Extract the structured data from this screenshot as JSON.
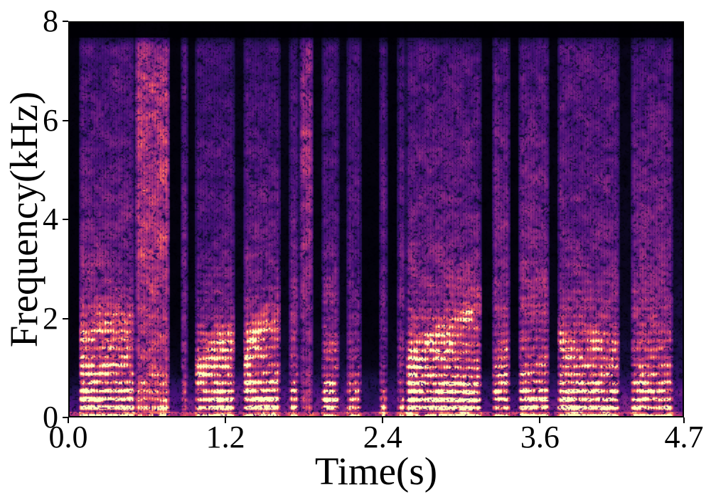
{
  "figure": {
    "background": "#ffffff",
    "spine_color": "#000000",
    "tick_color": "#000000",
    "text_color": "#000000"
  },
  "chart_data": {
    "type": "heatmap",
    "subtype": "speech-spectrogram",
    "title": "",
    "xlabel": "Time(s)",
    "ylabel": "Frequency(kHz)",
    "xlim": [
      0,
      4.7
    ],
    "ylim": [
      0,
      8
    ],
    "grid": false,
    "legend": false,
    "x_ticks": [
      {
        "value": 0.0,
        "label": "0.0"
      },
      {
        "value": 1.2,
        "label": "1.2"
      },
      {
        "value": 2.4,
        "label": "2.4"
      },
      {
        "value": 3.6,
        "label": "3.6"
      },
      {
        "value": 4.7,
        "label": "4.7"
      }
    ],
    "y_ticks": [
      {
        "value": 0,
        "label": "0"
      },
      {
        "value": 2,
        "label": "2"
      },
      {
        "value": 4,
        "label": "4"
      },
      {
        "value": 6,
        "label": "6"
      },
      {
        "value": 8,
        "label": "8"
      }
    ],
    "colormap": {
      "name": "magma",
      "stops": [
        [
          0.0,
          "#000004"
        ],
        [
          0.14,
          "#1d1147"
        ],
        [
          0.28,
          "#451077"
        ],
        [
          0.42,
          "#721f81"
        ],
        [
          0.56,
          "#9f2f7f"
        ],
        [
          0.7,
          "#cd4071"
        ],
        [
          0.8,
          "#ea5661"
        ],
        [
          0.88,
          "#fa815f"
        ],
        [
          0.94,
          "#fdab78"
        ],
        [
          1.0,
          "#fcfdbf"
        ]
      ]
    },
    "band_freqs_khz": [
      0.2,
      1.0,
      2.0,
      3.5,
      5.5,
      7.5
    ],
    "high_cutoff_khz": 7.7,
    "segments": [
      {
        "t0": 0.0,
        "t1": 0.07,
        "type": "silence",
        "levels": [
          0.25,
          0.04,
          0.02,
          0.02,
          0.02,
          0.02
        ],
        "harm": 0
      },
      {
        "t0": 0.07,
        "t1": 0.5,
        "type": "voiced",
        "levels": [
          0.95,
          0.72,
          0.55,
          0.42,
          0.33,
          0.3
        ],
        "harm": 0.6,
        "f0": 0.165,
        "track": [
          1.7,
          1.9,
          0.16
        ]
      },
      {
        "t0": 0.5,
        "t1": 0.77,
        "type": "fricative",
        "levels": [
          0.8,
          0.6,
          0.57,
          0.62,
          0.63,
          0.55
        ],
        "harm": 0.25,
        "f0": 0.165
      },
      {
        "t0": 0.77,
        "t1": 0.85,
        "type": "silence",
        "levels": [
          0.3,
          0.05,
          0.02,
          0.02,
          0.02,
          0.02
        ],
        "harm": 0
      },
      {
        "t0": 0.85,
        "t1": 0.91,
        "type": "burst",
        "levels": [
          0.65,
          0.5,
          0.45,
          0.4,
          0.35,
          0.3
        ],
        "harm": 0.3,
        "f0": 0.165
      },
      {
        "t0": 0.91,
        "t1": 0.96,
        "type": "silence",
        "levels": [
          0.35,
          0.08,
          0.04,
          0.03,
          0.03,
          0.03
        ],
        "harm": 0
      },
      {
        "t0": 0.96,
        "t1": 1.27,
        "type": "voiced",
        "levels": [
          0.9,
          0.62,
          0.45,
          0.33,
          0.28,
          0.24
        ],
        "harm": 0.6,
        "f0": 0.17,
        "track": [
          1.0,
          1.6,
          0.2
        ]
      },
      {
        "t0": 1.27,
        "t1": 1.33,
        "type": "silence",
        "levels": [
          0.45,
          0.1,
          0.05,
          0.04,
          0.04,
          0.04
        ],
        "harm": 0
      },
      {
        "t0": 1.33,
        "t1": 1.62,
        "type": "voiced",
        "levels": [
          0.92,
          0.66,
          0.5,
          0.38,
          0.3,
          0.26
        ],
        "harm": 0.6,
        "f0": 0.17,
        "track": [
          1.2,
          2.2,
          0.22
        ]
      },
      {
        "t0": 1.62,
        "t1": 1.68,
        "type": "silence",
        "levels": [
          0.4,
          0.1,
          0.05,
          0.04,
          0.04,
          0.04
        ],
        "harm": 0
      },
      {
        "t0": 1.68,
        "t1": 1.76,
        "type": "voiced",
        "levels": [
          0.85,
          0.6,
          0.48,
          0.38,
          0.32,
          0.28
        ],
        "harm": 0.5,
        "f0": 0.17
      },
      {
        "t0": 1.76,
        "t1": 1.87,
        "type": "fricative",
        "levels": [
          0.6,
          0.48,
          0.46,
          0.5,
          0.52,
          0.46
        ],
        "harm": 0.2,
        "f0": 0.17
      },
      {
        "t0": 1.87,
        "t1": 1.93,
        "type": "silence",
        "levels": [
          0.35,
          0.08,
          0.04,
          0.03,
          0.03,
          0.03
        ],
        "harm": 0
      },
      {
        "t0": 1.93,
        "t1": 2.07,
        "type": "voiced",
        "levels": [
          0.88,
          0.6,
          0.45,
          0.34,
          0.29,
          0.25
        ],
        "harm": 0.6,
        "f0": 0.17
      },
      {
        "t0": 2.07,
        "t1": 2.12,
        "type": "silence",
        "levels": [
          0.4,
          0.1,
          0.05,
          0.04,
          0.04,
          0.04
        ],
        "harm": 0
      },
      {
        "t0": 2.12,
        "t1": 2.24,
        "type": "voiced",
        "levels": [
          0.75,
          0.5,
          0.4,
          0.32,
          0.28,
          0.25
        ],
        "harm": 0.45,
        "f0": 0.17
      },
      {
        "t0": 2.24,
        "t1": 2.37,
        "type": "silence",
        "levels": [
          0.25,
          0.04,
          0.02,
          0.02,
          0.02,
          0.02
        ],
        "harm": 0
      },
      {
        "t0": 2.37,
        "t1": 2.44,
        "type": "burst",
        "levels": [
          0.7,
          0.45,
          0.4,
          0.35,
          0.32,
          0.28
        ],
        "harm": 0.35,
        "f0": 0.17
      },
      {
        "t0": 2.44,
        "t1": 2.51,
        "type": "silence",
        "levels": [
          0.3,
          0.06,
          0.03,
          0.02,
          0.02,
          0.02
        ],
        "harm": 0
      },
      {
        "t0": 2.51,
        "t1": 2.58,
        "type": "voiced",
        "levels": [
          0.7,
          0.5,
          0.42,
          0.35,
          0.3,
          0.26
        ],
        "harm": 0.45,
        "f0": 0.17
      },
      {
        "t0": 2.58,
        "t1": 3.16,
        "type": "voiced",
        "levels": [
          0.95,
          0.7,
          0.52,
          0.4,
          0.34,
          0.28
        ],
        "harm": 0.65,
        "f0": 0.165,
        "track": [
          0.9,
          2.3,
          0.22
        ]
      },
      {
        "t0": 3.16,
        "t1": 3.24,
        "type": "silence",
        "levels": [
          0.3,
          0.05,
          0.03,
          0.02,
          0.02,
          0.02
        ],
        "harm": 0
      },
      {
        "t0": 3.24,
        "t1": 3.38,
        "type": "voiced",
        "levels": [
          0.9,
          0.65,
          0.5,
          0.42,
          0.38,
          0.3
        ],
        "harm": 0.6,
        "f0": 0.17
      },
      {
        "t0": 3.38,
        "t1": 3.44,
        "type": "silence",
        "levels": [
          0.3,
          0.06,
          0.03,
          0.02,
          0.02,
          0.02
        ],
        "harm": 0
      },
      {
        "t0": 3.44,
        "t1": 3.68,
        "type": "voiced",
        "levels": [
          0.92,
          0.68,
          0.52,
          0.42,
          0.36,
          0.3
        ],
        "harm": 0.6,
        "f0": 0.17
      },
      {
        "t0": 3.68,
        "t1": 3.74,
        "type": "silence",
        "levels": [
          0.35,
          0.08,
          0.04,
          0.03,
          0.03,
          0.03
        ],
        "harm": 0
      },
      {
        "t0": 3.74,
        "t1": 4.22,
        "type": "voiced",
        "levels": [
          0.9,
          0.66,
          0.48,
          0.38,
          0.34,
          0.3
        ],
        "harm": 0.6,
        "f0": 0.165,
        "track": [
          1.6,
          1.3,
          0.15
        ]
      },
      {
        "t0": 4.22,
        "t1": 4.3,
        "type": "silence",
        "levels": [
          0.4,
          0.12,
          0.06,
          0.05,
          0.04,
          0.04
        ],
        "harm": 0
      },
      {
        "t0": 4.3,
        "t1": 4.63,
        "type": "voiced",
        "levels": [
          0.85,
          0.62,
          0.5,
          0.4,
          0.35,
          0.28
        ],
        "harm": 0.55,
        "f0": 0.17
      },
      {
        "t0": 4.63,
        "t1": 4.7,
        "type": "silence",
        "levels": [
          0.4,
          0.15,
          0.1,
          0.07,
          0.05,
          0.03
        ],
        "harm": 0
      }
    ]
  }
}
